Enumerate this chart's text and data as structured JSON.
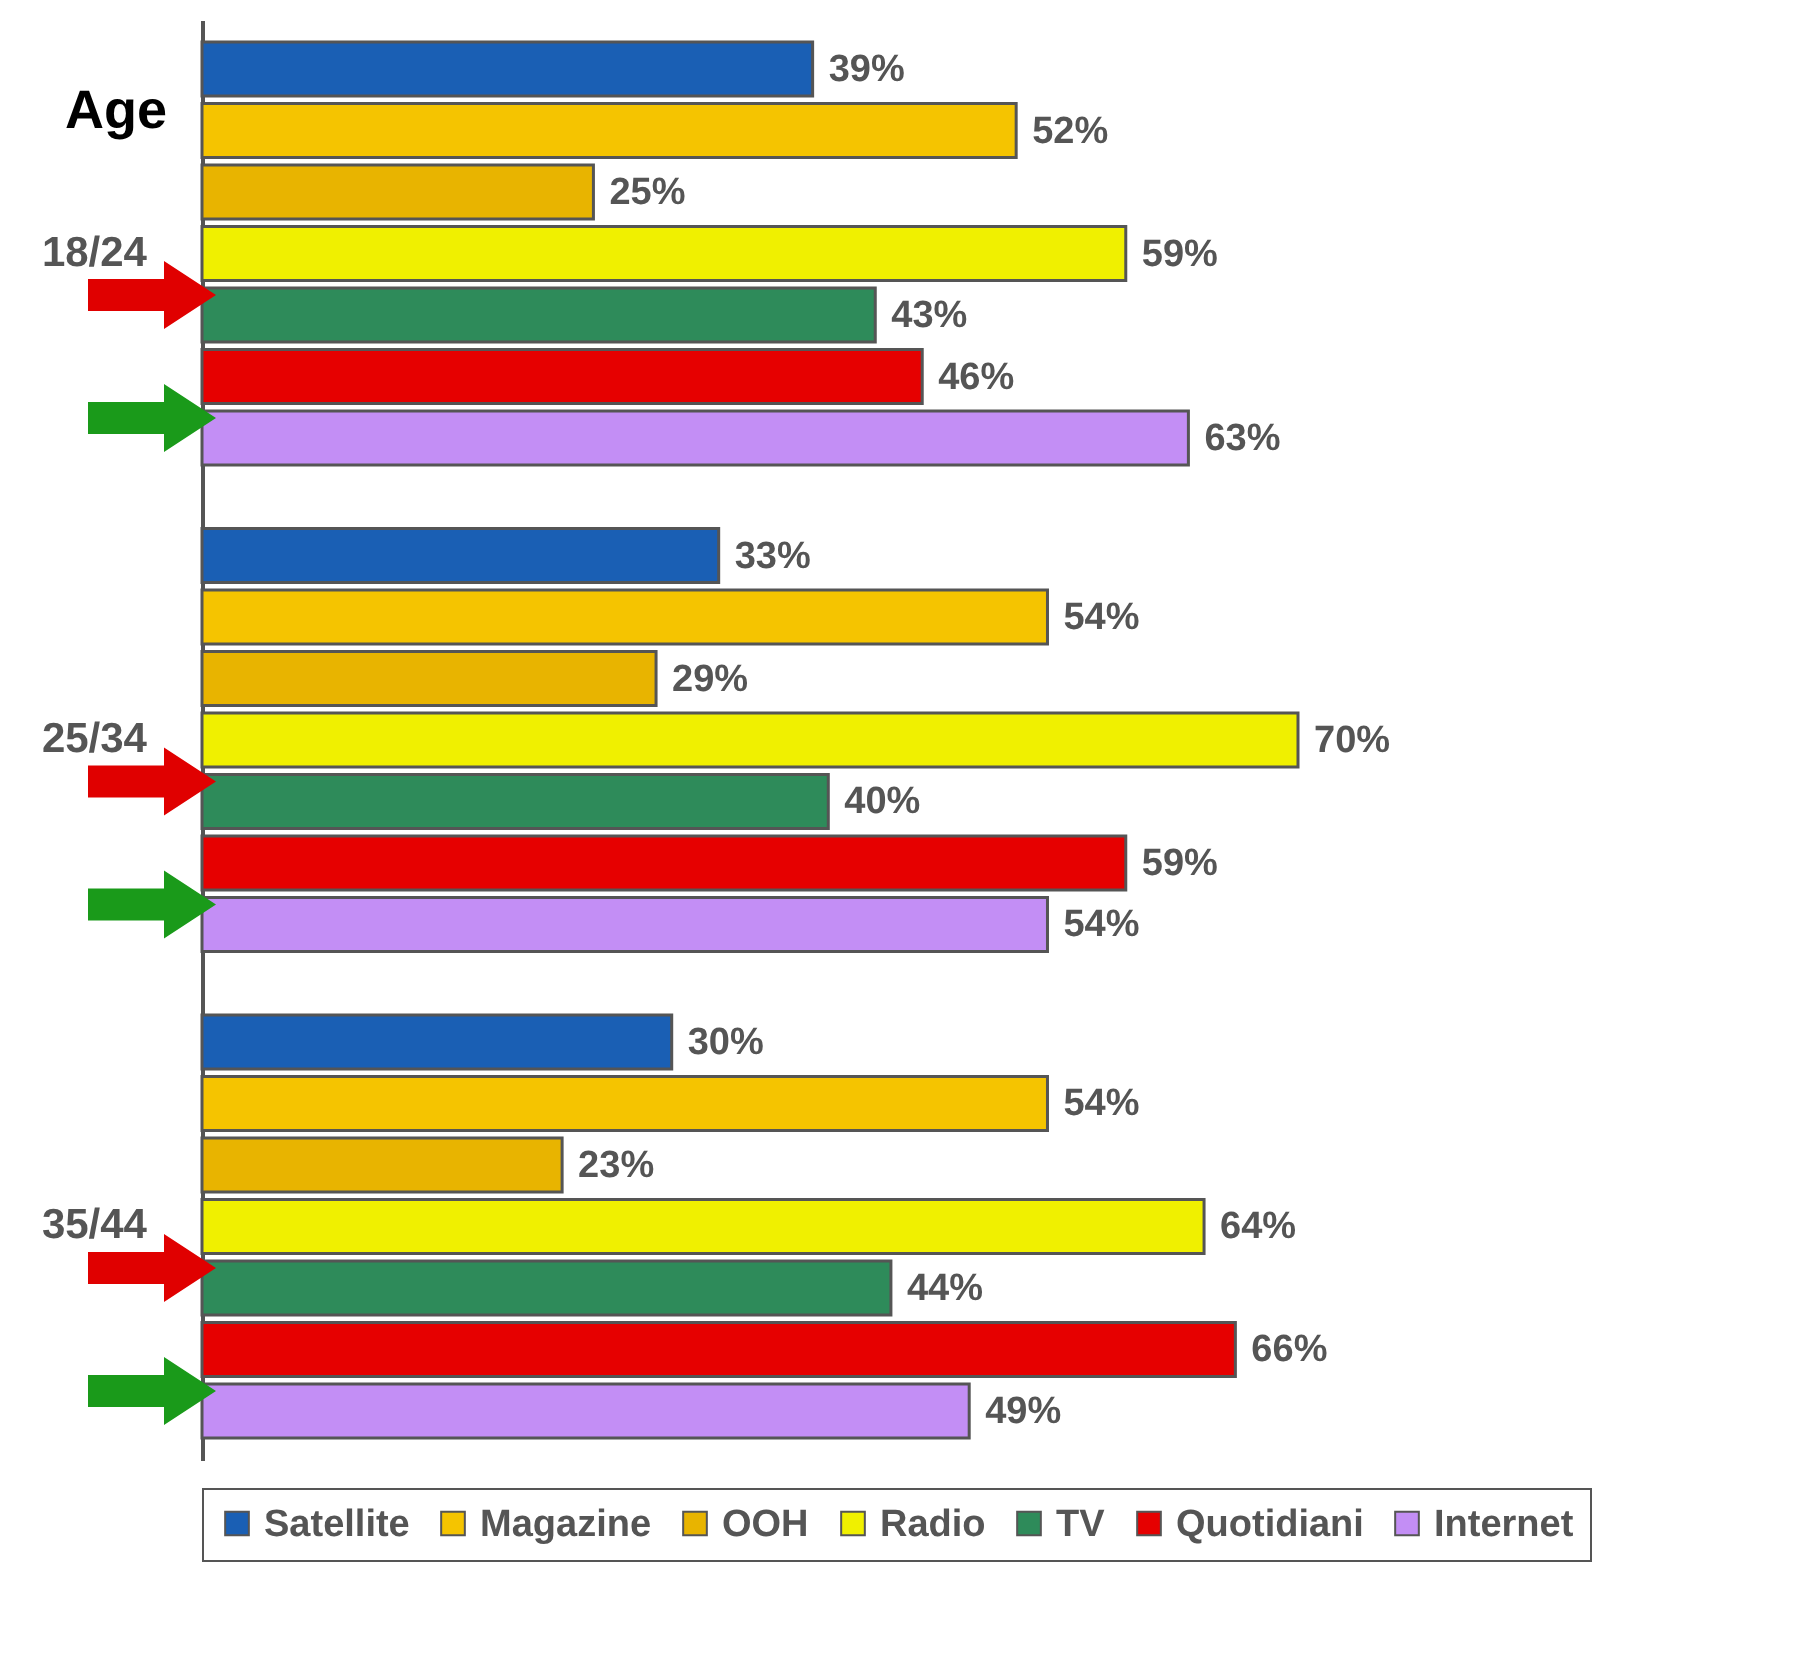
{
  "chart_data": {
    "type": "bar",
    "orientation": "horizontal",
    "tick_labels": "y",
    "title": "Age",
    "legend": "bottom",
    "categories": [
      "18/24",
      "25/34",
      "35/44"
    ],
    "series": [
      {
        "name": "Satellite",
        "color": "#1a5fb4",
        "values": [
          39,
          33,
          30
        ],
        "value_labels": [
          "39%",
          "33%",
          "30%"
        ]
      },
      {
        "name": "Magazine",
        "color": "#f5c400",
        "values": [
          52,
          54,
          54
        ],
        "value_labels": [
          "52%",
          "54%",
          "54%"
        ]
      },
      {
        "name": "OOH",
        "color": "#e8b400",
        "values": [
          25,
          29,
          23
        ],
        "value_labels": [
          "25%",
          "29%",
          "23%"
        ]
      },
      {
        "name": "Radio",
        "color": "#f0f000",
        "values": [
          59,
          70,
          64
        ],
        "value_labels": [
          "59%",
          "70%",
          "64%"
        ]
      },
      {
        "name": "TV",
        "color": "#2e8b5a",
        "values": [
          43,
          40,
          44
        ],
        "value_labels": [
          "43%",
          "40%",
          "44%"
        ]
      },
      {
        "name": "Quotidiani",
        "color": "#e60000",
        "values": [
          46,
          59,
          66
        ],
        "value_labels": [
          "46%",
          "59%",
          "66%"
        ]
      },
      {
        "name": "Internet",
        "color": "#c38ef5",
        "values": [
          63,
          54,
          49
        ],
        "value_labels": [
          "63%",
          "54%",
          "49%"
        ]
      }
    ]
  }
}
